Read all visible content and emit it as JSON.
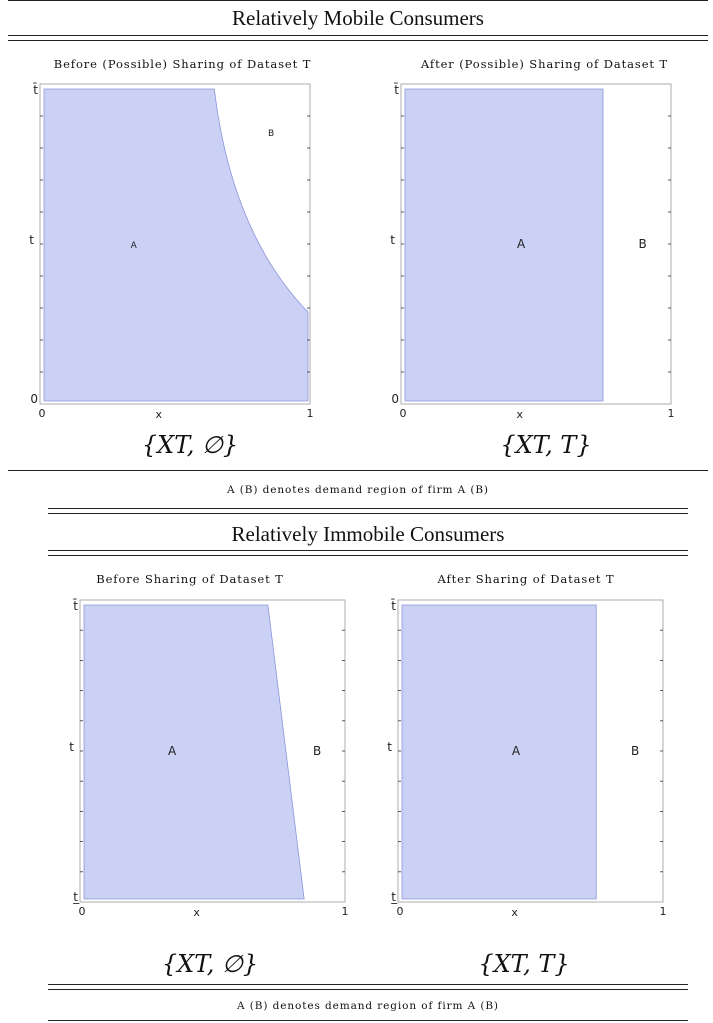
{
  "section1": {
    "title": "Relatively Mobile Consumers",
    "note": "A (B) denotes demand region of firm A (B)"
  },
  "section2": {
    "title": "Relatively Immobile Consumers",
    "note": "A (B) denotes demand region of firm A (B)"
  },
  "colors": {
    "region_a": "#cbd1f5",
    "region_a_edge": "#8b96d9"
  },
  "panels": [
    {
      "id": "mobile-before",
      "subtitle": "Before (Possible) Sharing of Dataset T",
      "caption": "{XT, ∅}",
      "x_label": "x",
      "y_label": "t",
      "x_ticks": [
        "0",
        "1"
      ],
      "y_ticks": [
        "0",
        "t̄"
      ],
      "region_a_label": "A",
      "region_b_label": "B",
      "boundary": "curved"
    },
    {
      "id": "mobile-after",
      "subtitle": "After (Possible) Sharing of Dataset T",
      "caption": "{XT, T}",
      "x_label": "x",
      "y_label": "t",
      "x_ticks": [
        "0",
        "1"
      ],
      "y_ticks": [
        "0",
        "t̄"
      ],
      "region_a_label": "A",
      "region_b_label": "B",
      "boundary": "vertical"
    },
    {
      "id": "immobile-before",
      "subtitle": "Before Sharing of Dataset T",
      "caption": "{XT, ∅}",
      "x_label": "x",
      "y_label": "t",
      "x_ticks": [
        "0",
        "1"
      ],
      "y_ticks": [
        "t̲",
        "t̄"
      ],
      "region_a_label": "A",
      "region_b_label": "B",
      "boundary": "slanted"
    },
    {
      "id": "immobile-after",
      "subtitle": "After Sharing of Dataset T",
      "caption": "{XT, T}",
      "x_label": "x",
      "y_label": "t",
      "x_ticks": [
        "0",
        "1"
      ],
      "y_ticks": [
        "t̲",
        "t̄"
      ],
      "region_a_label": "A",
      "region_b_label": "B",
      "boundary": "vertical"
    }
  ]
}
